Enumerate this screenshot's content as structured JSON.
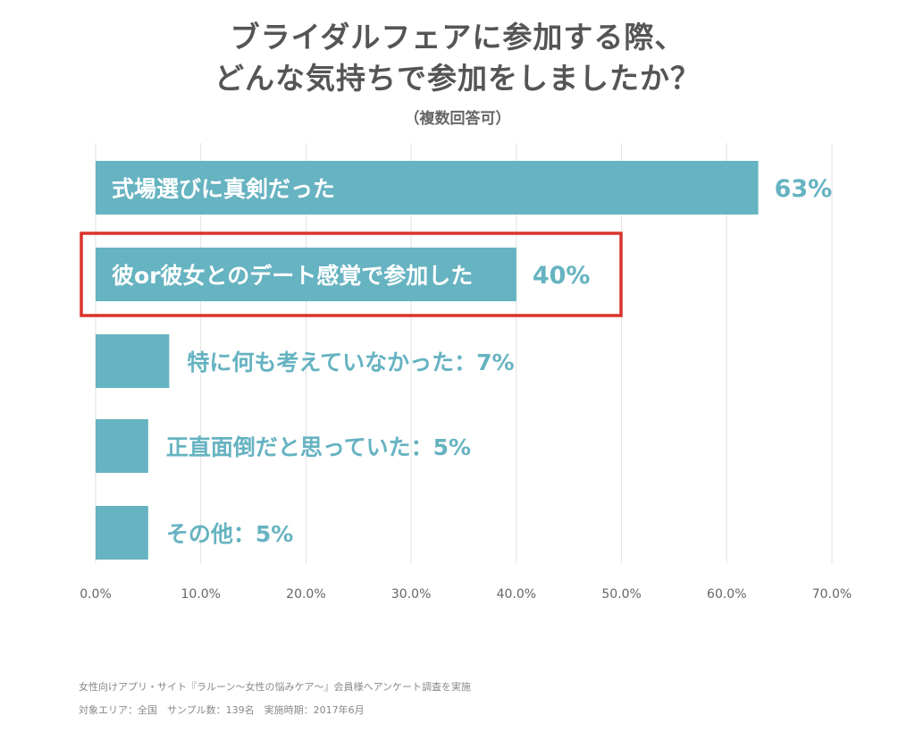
{
  "chart_data": {
    "type": "bar",
    "orientation": "horizontal",
    "title_lines": [
      "ブライダルフェアに参加する際、",
      "どんな気持ちで参加をしましたか？"
    ],
    "subtitle": "（複数回答可）",
    "categories": [
      "式場選びに真剣だった",
      "彼or彼女とのデート感覚で参加した",
      "特に何も考えていなかった",
      "正直面倒だと思っていた",
      "その他"
    ],
    "values": [
      63,
      40,
      7,
      5,
      5
    ],
    "value_labels": [
      "63%",
      "40%",
      "7%",
      "5%",
      "5%"
    ],
    "label_separator": "：",
    "xlim": [
      0,
      70
    ],
    "xticks": [
      "0.0%",
      "10.0%",
      "20.0%",
      "30.0%",
      "40.0%",
      "50.0%",
      "60.0%",
      "70.0%"
    ],
    "grid": true,
    "highlighted_category_index": 1,
    "colors": {
      "bar": "#66b3c1",
      "highlight_box": "#d9342b",
      "grid": "#e2e2e2"
    }
  },
  "footnotes": [
    "女性向けアプリ・サイト『ラルーン～女性の悩みケア～』会員様へアンケート調査を実施",
    "対象エリア：全国　サンプル数：139名　実施時期：2017年6月"
  ]
}
